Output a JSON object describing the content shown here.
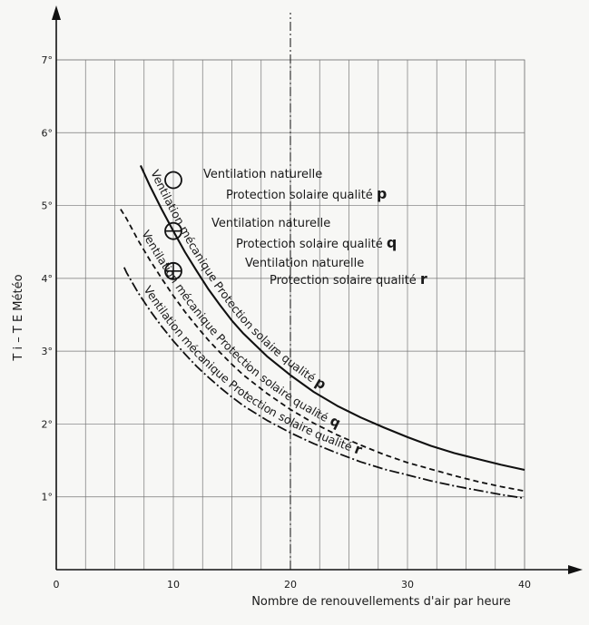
{
  "chart_data": {
    "type": "line",
    "xlabel": "Nombre de renouvellements d'air par heure",
    "ylabel": "T i – T E Météo",
    "xlim": [
      0,
      40
    ],
    "ylim": [
      0,
      7
    ],
    "x_ticks": [
      {
        "value": 0,
        "label": "0"
      },
      {
        "value": 10,
        "label": "10"
      },
      {
        "value": 20,
        "label": "20"
      },
      {
        "value": 30,
        "label": "30"
      },
      {
        "value": 40,
        "label": "40"
      }
    ],
    "y_ticks": [
      {
        "value": 1,
        "label": "1°"
      },
      {
        "value": 2,
        "label": "2°"
      },
      {
        "value": 3,
        "label": "3°"
      },
      {
        "value": 4,
        "label": "4°"
      },
      {
        "value": 5,
        "label": "5°"
      },
      {
        "value": 6,
        "label": "6°"
      },
      {
        "value": 7,
        "label": "7°"
      }
    ],
    "grid": true,
    "reference_line_x": 20,
    "series": [
      {
        "label_line1": "Ventilation mécanique Protection solaire qualité",
        "label_letter": "p",
        "style": "solid",
        "x": [
          7.2,
          8,
          9,
          10,
          11,
          12,
          13,
          14,
          15,
          16,
          18,
          20,
          22,
          24,
          26,
          28,
          30,
          32,
          34,
          36,
          38,
          40
        ],
        "y": [
          5.55,
          5.27,
          4.95,
          4.65,
          4.36,
          4.1,
          3.85,
          3.63,
          3.42,
          3.24,
          2.93,
          2.67,
          2.44,
          2.25,
          2.09,
          1.95,
          1.82,
          1.7,
          1.6,
          1.52,
          1.44,
          1.37
        ]
      },
      {
        "label_line1": "Ventilation mécanique Protection solaire qualité",
        "label_letter": "q",
        "style": "dashed",
        "x": [
          5.5,
          6,
          7,
          8,
          9,
          10,
          11,
          12,
          13,
          14,
          15,
          16,
          18,
          20,
          22,
          24,
          26,
          28,
          30,
          32,
          34,
          36,
          38,
          40
        ],
        "y": [
          4.95,
          4.82,
          4.52,
          4.25,
          4.0,
          3.76,
          3.54,
          3.34,
          3.15,
          2.98,
          2.82,
          2.67,
          2.42,
          2.2,
          2.01,
          1.85,
          1.71,
          1.58,
          1.47,
          1.38,
          1.29,
          1.21,
          1.14,
          1.08
        ]
      },
      {
        "label_line1": "Ventilation mécanique Protection solaire qualité",
        "label_letter": "r",
        "style": "dash-dot",
        "x": [
          5.8,
          6,
          7,
          8,
          9,
          10,
          11,
          12,
          13,
          14,
          15,
          16,
          18,
          20,
          22,
          24,
          26,
          28,
          30,
          32,
          34,
          36,
          38,
          40
        ],
        "y": [
          4.15,
          4.08,
          3.8,
          3.56,
          3.34,
          3.14,
          2.96,
          2.79,
          2.64,
          2.5,
          2.37,
          2.25,
          2.05,
          1.88,
          1.73,
          1.6,
          1.48,
          1.38,
          1.3,
          1.22,
          1.15,
          1.09,
          1.03,
          0.98
        ]
      }
    ],
    "points": [
      {
        "x": 10,
        "y": 5.35,
        "marker": "circle",
        "line1": "Ventilation naturelle",
        "line2": "Protection solaire qualité",
        "letter": "p"
      },
      {
        "x": 10,
        "y": 4.65,
        "marker": "circle-hline",
        "line1": "Ventilation naturelle",
        "line2": "Protection solaire qualité",
        "letter": "q"
      },
      {
        "x": 10,
        "y": 4.1,
        "marker": "circle-cross",
        "line1": "Ventilation naturelle",
        "line2": "Protection solaire qualité",
        "letter": "r"
      }
    ]
  }
}
